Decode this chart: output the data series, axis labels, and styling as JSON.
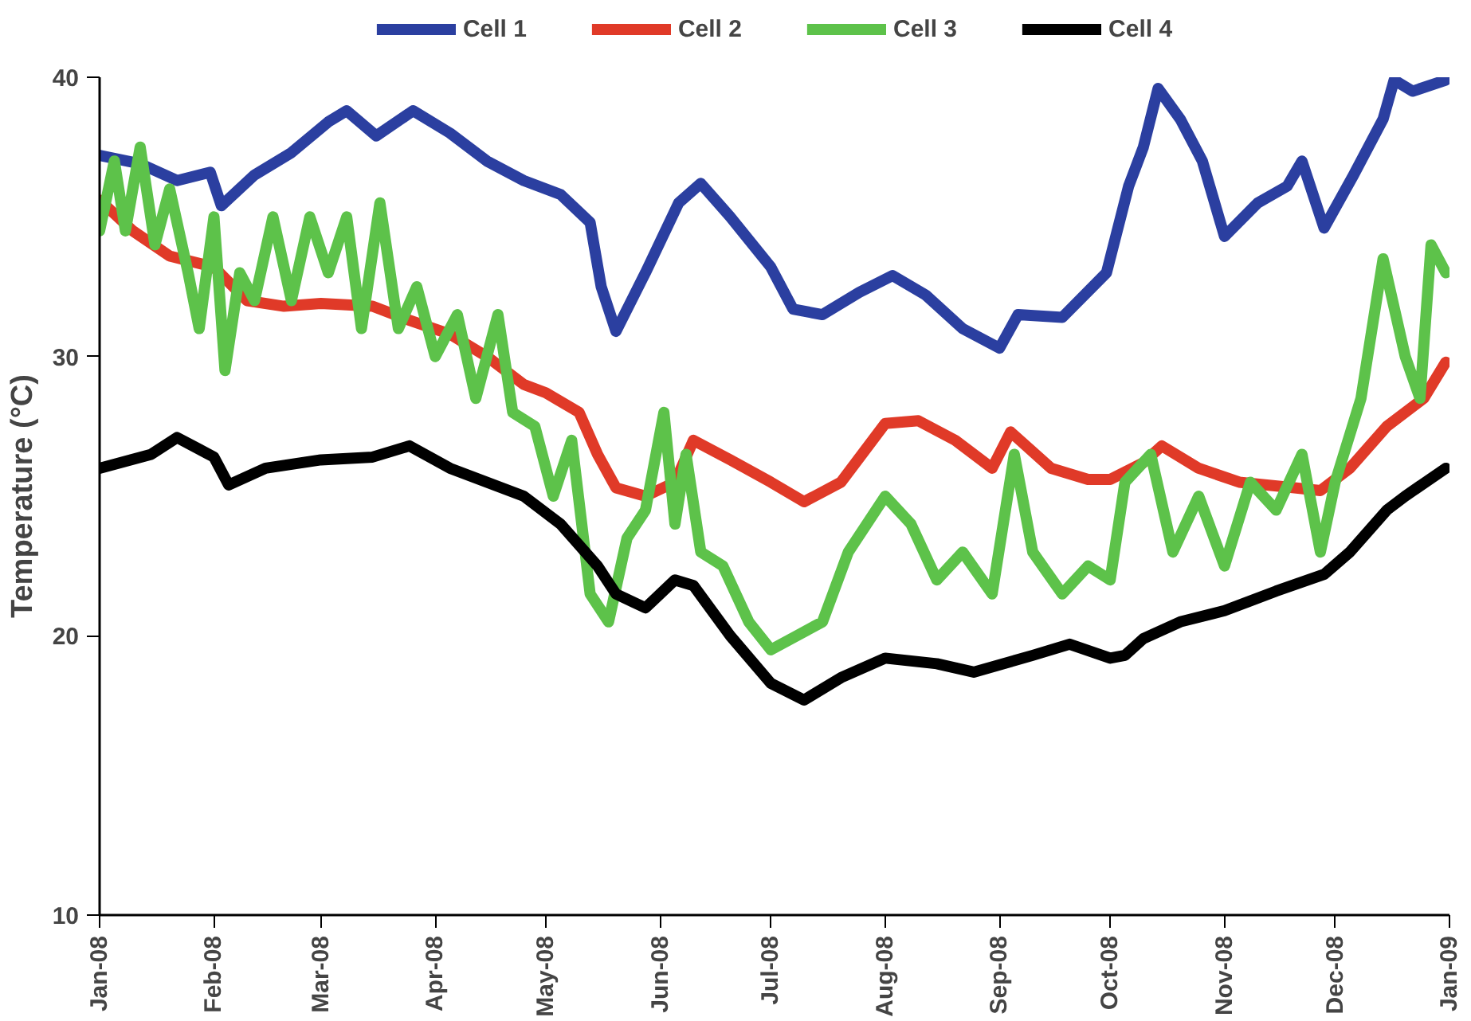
{
  "chart_data": {
    "type": "line",
    "ylabel": "Temperature (°C)",
    "xlim": [
      "2008-01-01",
      "2009-01-01"
    ],
    "xticks": [
      {
        "value": "2008-01-01",
        "label": "Jan-08"
      },
      {
        "value": "2008-02-01",
        "label": "Feb-08"
      },
      {
        "value": "2008-03-01",
        "label": "Mar-08"
      },
      {
        "value": "2008-04-01",
        "label": "Apr-08"
      },
      {
        "value": "2008-05-01",
        "label": "May-08"
      },
      {
        "value": "2008-06-01",
        "label": "Jun-08"
      },
      {
        "value": "2008-07-01",
        "label": "Jul-08"
      },
      {
        "value": "2008-08-01",
        "label": "Aug-08"
      },
      {
        "value": "2008-09-01",
        "label": "Sep-08"
      },
      {
        "value": "2008-10-01",
        "label": "Oct-08"
      },
      {
        "value": "2008-11-01",
        "label": "Nov-08"
      },
      {
        "value": "2008-12-01",
        "label": "Dec-08"
      },
      {
        "value": "2009-01-01",
        "label": "Jan-09"
      }
    ],
    "ylim": [
      10,
      40
    ],
    "yticks": [
      10,
      20,
      30,
      40
    ],
    "grid": false,
    "legend": "top",
    "marker": "none",
    "line_style": "solid",
    "series": [
      {
        "name": "Cell 1",
        "color": "#2b3fa0",
        "x": [
          "2008-01-01",
          "2008-01-12",
          "2008-01-22",
          "2008-01-31",
          "2008-02-03",
          "2008-02-12",
          "2008-02-22",
          "2008-03-03",
          "2008-03-08",
          "2008-03-16",
          "2008-03-26",
          "2008-04-05",
          "2008-04-15",
          "2008-04-25",
          "2008-05-05",
          "2008-05-13",
          "2008-05-16",
          "2008-05-20",
          "2008-05-28",
          "2008-06-06",
          "2008-06-12",
          "2008-06-20",
          "2008-07-01",
          "2008-07-07",
          "2008-07-15",
          "2008-07-25",
          "2008-08-03",
          "2008-08-12",
          "2008-08-22",
          "2008-09-01",
          "2008-09-06",
          "2008-09-18",
          "2008-09-30",
          "2008-10-06",
          "2008-10-10",
          "2008-10-14",
          "2008-10-20",
          "2008-10-26",
          "2008-11-01",
          "2008-11-10",
          "2008-11-18",
          "2008-11-22",
          "2008-11-28",
          "2008-12-06",
          "2008-12-14",
          "2008-12-17",
          "2008-12-22",
          "2008-12-31"
        ],
        "values": [
          37.2,
          36.9,
          36.3,
          36.6,
          35.4,
          36.5,
          37.3,
          38.4,
          38.8,
          37.9,
          38.8,
          38,
          37,
          36.3,
          35.8,
          34.8,
          32.5,
          30.9,
          33,
          35.5,
          36.2,
          35,
          33.2,
          31.7,
          31.5,
          32.3,
          32.9,
          32.2,
          31,
          30.3,
          31.5,
          31.4,
          33,
          36.1,
          37.5,
          39.6,
          38.5,
          37,
          34.3,
          35.5,
          36.1,
          37,
          34.6,
          36.5,
          38.5,
          39.9,
          39.5,
          39.9
        ]
      },
      {
        "name": "Cell 2",
        "color": "#e03a28",
        "x": [
          "2008-01-01",
          "2008-01-10",
          "2008-01-20",
          "2008-02-01",
          "2008-02-10",
          "2008-02-20",
          "2008-03-01",
          "2008-03-15",
          "2008-03-25",
          "2008-04-05",
          "2008-04-15",
          "2008-04-25",
          "2008-05-01",
          "2008-05-10",
          "2008-05-15",
          "2008-05-20",
          "2008-05-28",
          "2008-06-05",
          "2008-06-10",
          "2008-06-20",
          "2008-07-01",
          "2008-07-10",
          "2008-07-20",
          "2008-08-01",
          "2008-08-10",
          "2008-08-20",
          "2008-08-30",
          "2008-09-04",
          "2008-09-15",
          "2008-09-25",
          "2008-10-01",
          "2008-10-10",
          "2008-10-15",
          "2008-10-25",
          "2008-11-05",
          "2008-11-20",
          "2008-11-27",
          "2008-12-05",
          "2008-12-15",
          "2008-12-25",
          "2008-12-31"
        ],
        "values": [
          35.6,
          34.5,
          33.6,
          33.2,
          32,
          31.8,
          31.9,
          31.8,
          31.3,
          30.8,
          30,
          29,
          28.7,
          28,
          26.5,
          25.3,
          25,
          25.5,
          27,
          26.3,
          25.5,
          24.8,
          25.5,
          27.6,
          27.7,
          27,
          26,
          27.3,
          26,
          25.6,
          25.6,
          26.2,
          26.8,
          26,
          25.5,
          25.3,
          25.2,
          26,
          27.5,
          28.5,
          29.8
        ]
      },
      {
        "name": "Cell 3",
        "color": "#5dc24a",
        "x": [
          "2008-01-01",
          "2008-01-05",
          "2008-01-08",
          "2008-01-12",
          "2008-01-16",
          "2008-01-20",
          "2008-01-25",
          "2008-01-28",
          "2008-02-01",
          "2008-02-04",
          "2008-02-08",
          "2008-02-12",
          "2008-02-17",
          "2008-02-22",
          "2008-02-27",
          "2008-03-03",
          "2008-03-08",
          "2008-03-12",
          "2008-03-17",
          "2008-03-22",
          "2008-03-27",
          "2008-04-01",
          "2008-04-07",
          "2008-04-12",
          "2008-04-18",
          "2008-04-22",
          "2008-04-28",
          "2008-05-03",
          "2008-05-08",
          "2008-05-13",
          "2008-05-18",
          "2008-05-23",
          "2008-05-28",
          "2008-06-02",
          "2008-06-05",
          "2008-06-08",
          "2008-06-12",
          "2008-06-18",
          "2008-06-25",
          "2008-07-01",
          "2008-07-08",
          "2008-07-15",
          "2008-07-22",
          "2008-08-01",
          "2008-08-08",
          "2008-08-15",
          "2008-08-22",
          "2008-08-30",
          "2008-09-05",
          "2008-09-10",
          "2008-09-18",
          "2008-09-25",
          "2008-10-01",
          "2008-10-05",
          "2008-10-12",
          "2008-10-18",
          "2008-10-25",
          "2008-11-01",
          "2008-11-08",
          "2008-11-15",
          "2008-11-22",
          "2008-11-27",
          "2008-12-01",
          "2008-12-08",
          "2008-12-14",
          "2008-12-20",
          "2008-12-24",
          "2008-12-27",
          "2008-12-31"
        ],
        "values": [
          34.5,
          37,
          34.5,
          37.5,
          34,
          36,
          33,
          31,
          35,
          29.5,
          33,
          32,
          35,
          32,
          35,
          33,
          35,
          31,
          35.5,
          31,
          32.5,
          30,
          31.5,
          28.5,
          31.5,
          28,
          27.5,
          25,
          27,
          21.5,
          20.5,
          23.5,
          24.5,
          28,
          24,
          26.5,
          23,
          22.5,
          20.5,
          19.5,
          20,
          20.5,
          23,
          25,
          24,
          22,
          23,
          21.5,
          26.5,
          23,
          21.5,
          22.5,
          22,
          25.5,
          26.5,
          23,
          25,
          22.5,
          25.5,
          24.5,
          26.5,
          23,
          25.5,
          28.5,
          33.5,
          30,
          28.5,
          34,
          33
        ]
      },
      {
        "name": "Cell 4",
        "color": "#000000",
        "x": [
          "2008-01-01",
          "2008-01-15",
          "2008-01-22",
          "2008-02-01",
          "2008-02-05",
          "2008-02-15",
          "2008-03-01",
          "2008-03-15",
          "2008-03-25",
          "2008-04-05",
          "2008-04-15",
          "2008-04-25",
          "2008-05-05",
          "2008-05-15",
          "2008-05-20",
          "2008-05-28",
          "2008-06-05",
          "2008-06-10",
          "2008-06-20",
          "2008-07-01",
          "2008-07-10",
          "2008-07-20",
          "2008-08-01",
          "2008-08-15",
          "2008-08-25",
          "2008-09-10",
          "2008-09-20",
          "2008-10-01",
          "2008-10-05",
          "2008-10-10",
          "2008-10-20",
          "2008-11-01",
          "2008-11-15",
          "2008-11-28",
          "2008-12-05",
          "2008-12-15",
          "2008-12-20",
          "2008-12-31"
        ],
        "values": [
          26,
          26.5,
          27.1,
          26.4,
          25.4,
          26,
          26.3,
          26.4,
          26.8,
          26,
          25.5,
          25,
          24,
          22.5,
          21.5,
          21,
          22,
          21.8,
          20,
          18.3,
          17.7,
          18.5,
          19.2,
          19,
          18.7,
          19.3,
          19.7,
          19.2,
          19.3,
          19.9,
          20.5,
          20.9,
          21.6,
          22.2,
          23,
          24.5,
          25,
          26
        ]
      }
    ]
  }
}
